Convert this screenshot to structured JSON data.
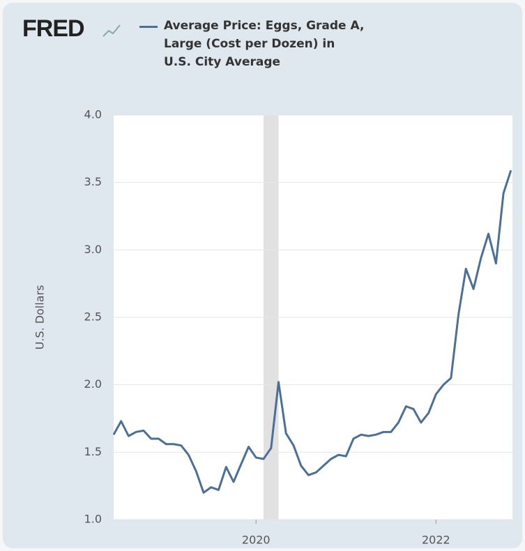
{
  "logo": "FRED",
  "chart_data": {
    "type": "line",
    "legend_label": "Average Price: Eggs, Grade A, Large (Cost per Dozen) in U.S. City Average",
    "ylabel": "U.S. Dollars",
    "x": [
      2018.417,
      2018.5,
      2018.583,
      2018.667,
      2018.75,
      2018.833,
      2018.917,
      2019,
      2019.083,
      2019.167,
      2019.25,
      2019.333,
      2019.417,
      2019.5,
      2019.583,
      2019.667,
      2019.75,
      2019.833,
      2019.917,
      2020,
      2020.083,
      2020.167,
      2020.25,
      2020.333,
      2020.417,
      2020.5,
      2020.583,
      2020.667,
      2020.75,
      2020.833,
      2020.917,
      2021,
      2021.083,
      2021.167,
      2021.25,
      2021.333,
      2021.417,
      2021.5,
      2021.583,
      2021.667,
      2021.75,
      2021.833,
      2021.917,
      2022,
      2022.083,
      2022.167,
      2022.25,
      2022.333,
      2022.417,
      2022.5,
      2022.583,
      2022.667,
      2022.75,
      2022.833
    ],
    "series": [
      {
        "name": "Average Price: Eggs, Grade A, Large (Cost per Dozen) in U.S. City Average",
        "color": "#4b6f97",
        "values": [
          1.63,
          1.73,
          1.62,
          1.65,
          1.66,
          1.6,
          1.6,
          1.56,
          1.56,
          1.55,
          1.48,
          1.36,
          1.2,
          1.24,
          1.22,
          1.39,
          1.28,
          1.41,
          1.54,
          1.46,
          1.45,
          1.53,
          2.02,
          1.64,
          1.55,
          1.4,
          1.33,
          1.35,
          1.4,
          1.45,
          1.48,
          1.47,
          1.6,
          1.63,
          1.62,
          1.63,
          1.65,
          1.65,
          1.72,
          1.84,
          1.82,
          1.72,
          1.79,
          1.93,
          2.0,
          2.05,
          2.52,
          2.86,
          2.71,
          2.94,
          3.12,
          2.9,
          3.42,
          3.59
        ]
      }
    ],
    "recession": [
      2020.083,
      2020.25
    ],
    "recession_color": "#e1e1e1",
    "xlim": [
      2018.417,
      2022.85
    ],
    "xticks": [
      2020,
      2022
    ],
    "ylim": [
      1,
      4
    ],
    "yticks": [
      {
        "value": 1,
        "label": "1.0"
      },
      1.5,
      {
        "value": 2,
        "label": "2.0"
      },
      2.5,
      {
        "value": 3,
        "label": "3.0"
      },
      3.5,
      {
        "value": 4,
        "label": "4.0"
      }
    ],
    "grid": true
  }
}
